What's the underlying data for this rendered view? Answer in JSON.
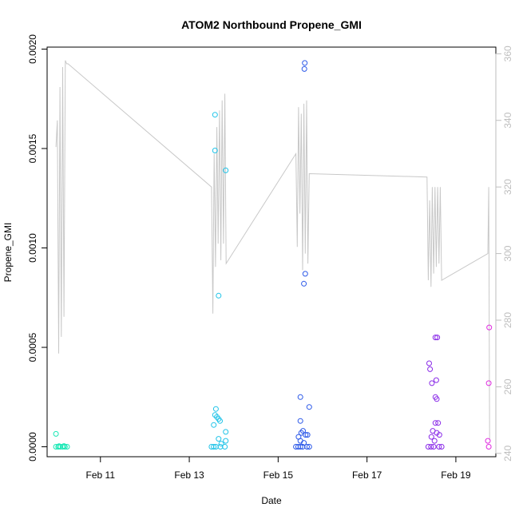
{
  "chart_data": {
    "type": "scatter",
    "title": "ATOM2 Northbound Propene_GMI",
    "xlabel": "Date",
    "ylabel": "Propene_GMI",
    "x_unit": "days since 2000-01-01 (Feb 10 = day 0)",
    "xlim": [
      9.8,
      19.9
    ],
    "ylim": [
      -5e-05,
      0.00201
    ],
    "x_ticks": [
      {
        "value": 11,
        "label": "Feb 11"
      },
      {
        "value": 13,
        "label": "Feb 13"
      },
      {
        "value": 15,
        "label": "Feb 15"
      },
      {
        "value": 17,
        "label": "Feb 17"
      },
      {
        "value": 19,
        "label": "Feb 19"
      }
    ],
    "y_ticks": [
      {
        "value": 0.0,
        "label": "0.0000"
      },
      {
        "value": 0.0005,
        "label": "0.0005"
      },
      {
        "value": 0.001,
        "label": "0.0010"
      },
      {
        "value": 0.0015,
        "label": "0.0015"
      },
      {
        "value": 0.002,
        "label": "0.0020"
      }
    ],
    "secondary_axis": {
      "ylim": [
        239,
        362
      ],
      "ticks": [
        {
          "value": 240,
          "label": "240"
        },
        {
          "value": 260,
          "label": "260"
        },
        {
          "value": 280,
          "label": "280"
        },
        {
          "value": 300,
          "label": "300"
        },
        {
          "value": 320,
          "label": "320"
        },
        {
          "value": 340,
          "label": "340"
        },
        {
          "value": 360,
          "label": "360"
        }
      ],
      "color": "#bebebe"
    },
    "grid": false,
    "legend": "none",
    "points": [
      {
        "x": 10.0,
        "y": 6.5e-05,
        "color": "#19e8b5"
      },
      {
        "x": 10.0,
        "y": 0.0,
        "color": "#19e8b5"
      },
      {
        "x": 10.05,
        "y": 0.0,
        "color": "#19e8b5"
      },
      {
        "x": 10.1,
        "y": 0.0,
        "color": "#19e8b5"
      },
      {
        "x": 10.15,
        "y": 0.0,
        "color": "#19e8b5"
      },
      {
        "x": 10.2,
        "y": 0.0,
        "color": "#19e8b5"
      },
      {
        "x": 10.25,
        "y": 0.0,
        "color": "#19e8b5"
      },
      {
        "x": 10.07,
        "y": 3e-06,
        "color": "#19e8b5"
      },
      {
        "x": 10.18,
        "y": 4e-06,
        "color": "#19e8b5"
      },
      {
        "x": 13.5,
        "y": 0.0,
        "color": "#1fc3e8"
      },
      {
        "x": 13.55,
        "y": 0.0,
        "color": "#1fc3e8"
      },
      {
        "x": 13.6,
        "y": 0.0,
        "color": "#1fc3e8"
      },
      {
        "x": 13.7,
        "y": 0.0,
        "color": "#1fc3e8"
      },
      {
        "x": 13.8,
        "y": 0.0,
        "color": "#1fc3e8"
      },
      {
        "x": 13.58,
        "y": 0.00167,
        "color": "#1fc3e8"
      },
      {
        "x": 13.58,
        "y": 0.00149,
        "color": "#1fc3e8"
      },
      {
        "x": 13.82,
        "y": 0.00139,
        "color": "#1fc3e8"
      },
      {
        "x": 13.66,
        "y": 0.00076,
        "color": "#1fc3e8"
      },
      {
        "x": 13.6,
        "y": 0.00019,
        "color": "#1fc3e8"
      },
      {
        "x": 13.58,
        "y": 0.00016,
        "color": "#1fc3e8"
      },
      {
        "x": 13.62,
        "y": 0.00015,
        "color": "#1fc3e8"
      },
      {
        "x": 13.66,
        "y": 0.00014,
        "color": "#1fc3e8"
      },
      {
        "x": 13.69,
        "y": 0.00013,
        "color": "#1fc3e8"
      },
      {
        "x": 13.55,
        "y": 0.00011,
        "color": "#1fc3e8"
      },
      {
        "x": 13.82,
        "y": 7.5e-05,
        "color": "#1fc3e8"
      },
      {
        "x": 13.66,
        "y": 4e-05,
        "color": "#1fc3e8"
      },
      {
        "x": 13.82,
        "y": 3e-05,
        "color": "#1fc3e8"
      },
      {
        "x": 13.72,
        "y": 1.5e-05,
        "color": "#1fc3e8"
      },
      {
        "x": 15.6,
        "y": 0.00193,
        "color": "#2b58e8"
      },
      {
        "x": 15.59,
        "y": 0.0019,
        "color": "#2b58e8"
      },
      {
        "x": 15.61,
        "y": 0.00087,
        "color": "#2b58e8"
      },
      {
        "x": 15.58,
        "y": 0.00082,
        "color": "#2b58e8"
      },
      {
        "x": 15.5,
        "y": 0.00025,
        "color": "#2b58e8"
      },
      {
        "x": 15.7,
        "y": 0.0002,
        "color": "#2b58e8"
      },
      {
        "x": 15.5,
        "y": 0.00013,
        "color": "#2b58e8"
      },
      {
        "x": 15.56,
        "y": 8e-05,
        "color": "#2b58e8"
      },
      {
        "x": 15.52,
        "y": 7e-05,
        "color": "#2b58e8"
      },
      {
        "x": 15.62,
        "y": 6e-05,
        "color": "#2b58e8"
      },
      {
        "x": 15.66,
        "y": 6e-05,
        "color": "#2b58e8"
      },
      {
        "x": 15.46,
        "y": 5e-05,
        "color": "#2b58e8"
      },
      {
        "x": 15.5,
        "y": 3e-05,
        "color": "#2b58e8"
      },
      {
        "x": 15.58,
        "y": 2e-05,
        "color": "#2b58e8"
      },
      {
        "x": 15.4,
        "y": 0.0,
        "color": "#2b58e8"
      },
      {
        "x": 15.45,
        "y": 0.0,
        "color": "#2b58e8"
      },
      {
        "x": 15.5,
        "y": 0.0,
        "color": "#2b58e8"
      },
      {
        "x": 15.55,
        "y": 0.0,
        "color": "#2b58e8"
      },
      {
        "x": 15.65,
        "y": 0.0,
        "color": "#2b58e8"
      },
      {
        "x": 15.7,
        "y": 0.0,
        "color": "#2b58e8"
      },
      {
        "x": 18.54,
        "y": 0.00055,
        "color": "#8a2be8"
      },
      {
        "x": 18.58,
        "y": 0.00055,
        "color": "#8a2be8"
      },
      {
        "x": 18.4,
        "y": 0.00042,
        "color": "#8a2be8"
      },
      {
        "x": 18.42,
        "y": 0.00039,
        "color": "#8a2be8"
      },
      {
        "x": 18.56,
        "y": 0.000335,
        "color": "#8a2be8"
      },
      {
        "x": 18.46,
        "y": 0.00032,
        "color": "#8a2be8"
      },
      {
        "x": 18.54,
        "y": 0.00025,
        "color": "#8a2be8"
      },
      {
        "x": 18.57,
        "y": 0.00024,
        "color": "#8a2be8"
      },
      {
        "x": 18.54,
        "y": 0.00012,
        "color": "#8a2be8"
      },
      {
        "x": 18.6,
        "y": 0.00012,
        "color": "#8a2be8"
      },
      {
        "x": 18.48,
        "y": 8e-05,
        "color": "#8a2be8"
      },
      {
        "x": 18.57,
        "y": 7e-05,
        "color": "#8a2be8"
      },
      {
        "x": 18.63,
        "y": 6e-05,
        "color": "#8a2be8"
      },
      {
        "x": 18.45,
        "y": 5e-05,
        "color": "#8a2be8"
      },
      {
        "x": 18.52,
        "y": 3e-05,
        "color": "#8a2be8"
      },
      {
        "x": 18.38,
        "y": 0.0,
        "color": "#8a2be8"
      },
      {
        "x": 18.44,
        "y": 0.0,
        "color": "#8a2be8"
      },
      {
        "x": 18.5,
        "y": 0.0,
        "color": "#8a2be8"
      },
      {
        "x": 18.62,
        "y": 0.0,
        "color": "#8a2be8"
      },
      {
        "x": 18.68,
        "y": 0.0,
        "color": "#8a2be8"
      },
      {
        "x": 19.75,
        "y": 0.0006,
        "color": "#e02be0"
      },
      {
        "x": 19.74,
        "y": 0.00032,
        "color": "#e02be0"
      },
      {
        "x": 19.72,
        "y": 3e-05,
        "color": "#e02be0"
      },
      {
        "x": 19.74,
        "y": 0.0,
        "color": "#e02be0"
      }
    ],
    "altitude_trace": {
      "axis": "secondary",
      "color": "#c8c8c8",
      "x": [
        10.0,
        10.03,
        10.06,
        10.09,
        10.12,
        10.15,
        10.18,
        10.21,
        10.24,
        10.27,
        13.5,
        13.53,
        13.56,
        13.59,
        13.62,
        13.65,
        13.68,
        13.71,
        13.74,
        13.77,
        13.8,
        13.83,
        15.4,
        15.43,
        15.46,
        15.49,
        15.52,
        15.55,
        15.58,
        15.61,
        15.64,
        15.67,
        15.7,
        18.35,
        18.38,
        18.41,
        18.44,
        18.47,
        18.5,
        18.53,
        18.56,
        18.59,
        18.62,
        18.65,
        18.68,
        19.72,
        19.74,
        19.76
      ],
      "y": [
        332,
        340,
        270,
        350,
        275,
        356,
        281,
        358,
        357,
        357,
        320,
        282,
        330,
        296,
        338,
        303,
        343,
        298,
        346,
        303,
        348,
        297,
        330,
        302,
        344,
        312,
        342,
        295,
        345,
        300,
        346,
        297,
        324,
        323,
        292,
        316,
        290,
        320,
        294,
        320,
        296,
        320,
        297,
        320,
        292,
        300,
        320,
        244
      ]
    }
  }
}
